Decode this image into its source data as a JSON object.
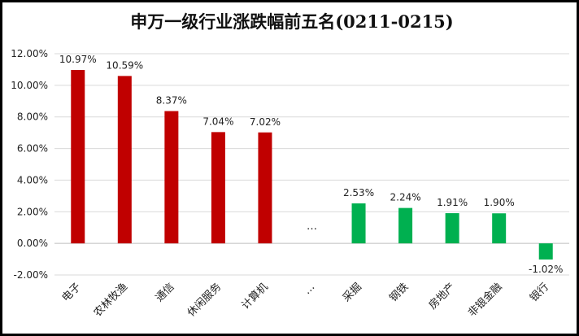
{
  "chart_data": {
    "type": "bar",
    "title": "申万一级行业涨跌幅前五名(0211-0215)",
    "xlabel": "",
    "ylabel": "",
    "ylim": [
      -2,
      12
    ],
    "yticks": [
      -2,
      0,
      2,
      4,
      6,
      8,
      10,
      12
    ],
    "ytick_labels": [
      "-2.00%",
      "0.00%",
      "2.00%",
      "4.00%",
      "6.00%",
      "8.00%",
      "10.00%",
      "12.00%"
    ],
    "grid": true,
    "legend": "none",
    "categories": [
      "电子",
      "农林牧渔",
      "通信",
      "休闲服务",
      "计算机",
      "…",
      "采掘",
      "钢铁",
      "房地产",
      "非银金融",
      "银行"
    ],
    "values": [
      10.97,
      10.59,
      8.37,
      7.04,
      7.02,
      null,
      2.53,
      2.24,
      1.91,
      1.9,
      -1.02
    ],
    "data_labels": [
      "10.97%",
      "10.59%",
      "8.37%",
      "7.04%",
      "7.02%",
      "…",
      "2.53%",
      "2.24%",
      "1.91%",
      "1.90%",
      "-1.02%"
    ],
    "colors": [
      "#C00000",
      "#C00000",
      "#C00000",
      "#C00000",
      "#C00000",
      null,
      "#00B050",
      "#00B050",
      "#00B050",
      "#00B050",
      "#00B050"
    ]
  },
  "style": {
    "grid_color": "#D9D9D9",
    "axis_color": "#BFBFBF",
    "border_color": "#000000"
  }
}
